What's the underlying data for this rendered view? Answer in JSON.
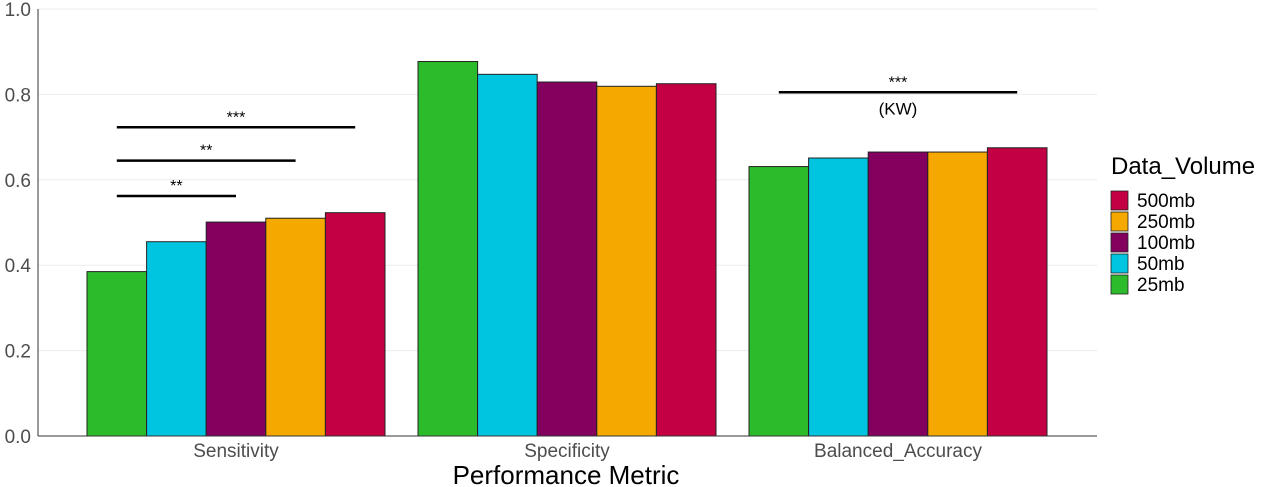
{
  "chart_data": {
    "type": "bar",
    "xlabel": "Performance Metric",
    "ylabel": "",
    "ylim": [
      0,
      1.0
    ],
    "yticks": [
      "0.0",
      "0.2",
      "0.4",
      "0.6",
      "0.8",
      "1.0"
    ],
    "grid": "horizontal",
    "categories": [
      "Sensitivity",
      "Specificity",
      "Balanced_Accuracy"
    ],
    "legend": {
      "title": "Data_Volume",
      "placement": "right",
      "entries": [
        "500mb",
        "250mb",
        "100mb",
        "50mb",
        "25mb"
      ]
    },
    "series": [
      {
        "name": "25mb",
        "color": "#2bbb2b",
        "values": [
          0.385,
          0.877,
          0.631
        ]
      },
      {
        "name": "50mb",
        "color": "#00c5e0",
        "values": [
          0.455,
          0.847,
          0.651
        ]
      },
      {
        "name": "100mb",
        "color": "#83005f",
        "values": [
          0.501,
          0.829,
          0.665
        ]
      },
      {
        "name": "250mb",
        "color": "#f5a800",
        "values": [
          0.51,
          0.819,
          0.665
        ]
      },
      {
        "name": "500mb",
        "color": "#c30043",
        "values": [
          0.523,
          0.825,
          0.675
        ]
      }
    ],
    "annotations": [
      {
        "category": "Sensitivity",
        "from": "25mb",
        "to": "100mb",
        "y": 0.562,
        "label": "**"
      },
      {
        "category": "Sensitivity",
        "from": "25mb",
        "to": "250mb",
        "y": 0.645,
        "label": "**"
      },
      {
        "category": "Sensitivity",
        "from": "25mb",
        "to": "500mb",
        "y": 0.723,
        "label": "***"
      },
      {
        "category": "Balanced_Accuracy",
        "from": "25mb",
        "to": "500mb",
        "y": 0.805,
        "label": "***",
        "sublabel": "(KW)"
      }
    ]
  }
}
